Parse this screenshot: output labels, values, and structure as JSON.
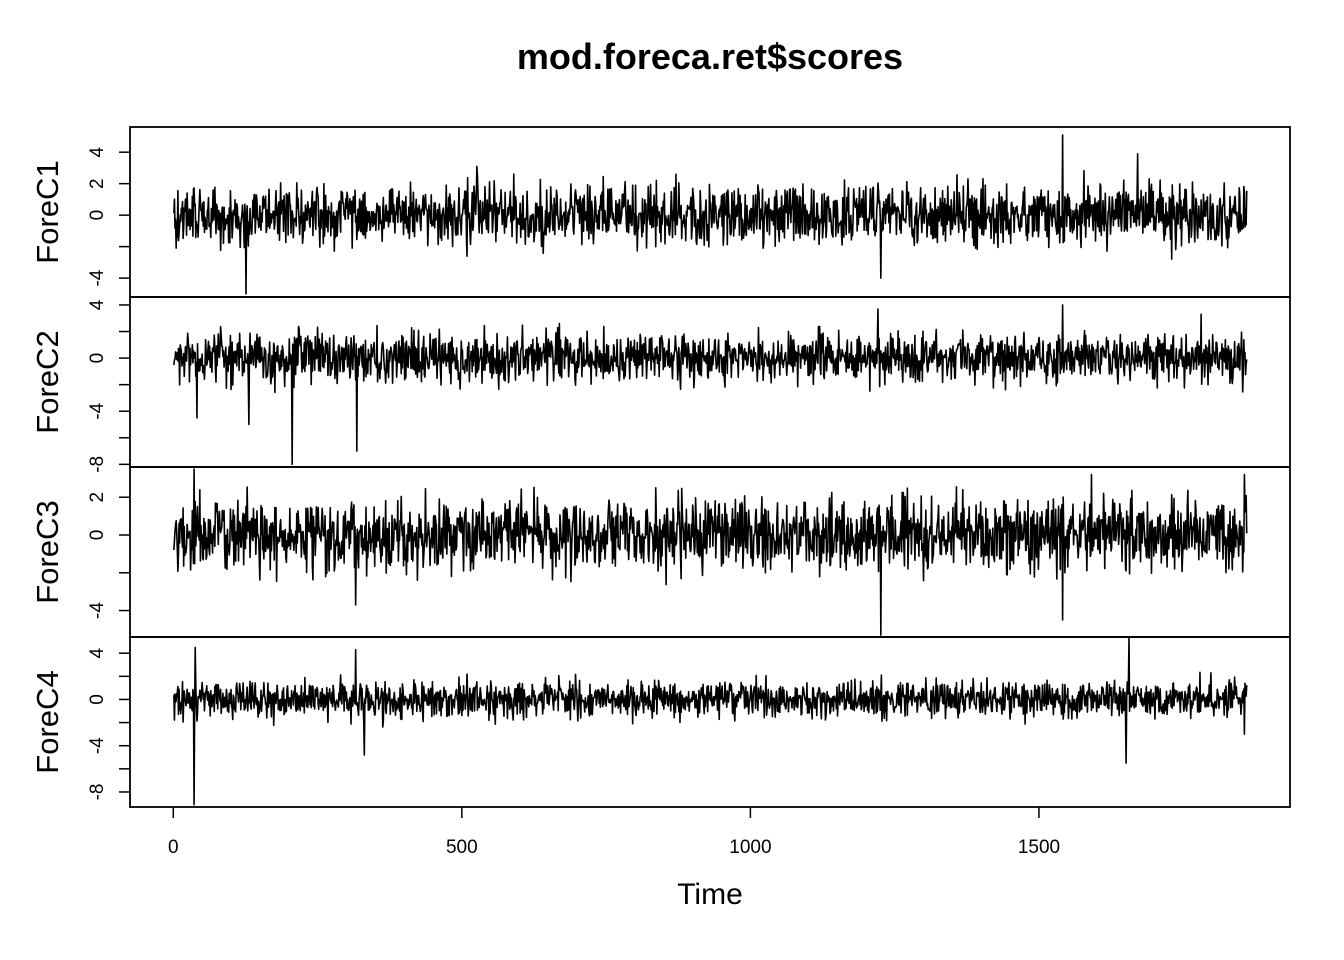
{
  "chart_data": {
    "type": "line",
    "title": "mod.foreca.ret$scores",
    "xlabel": "Time",
    "xlim": [
      0,
      1860
    ],
    "x_ticks": [
      0,
      500,
      1000,
      1500
    ],
    "n_points": 1860,
    "series": [
      {
        "name": "ForeC1",
        "ylim": [
          -5.2,
          5.6
        ],
        "y_ticks": [
          -4,
          -2,
          0,
          2,
          4
        ],
        "y_tick_labels": [
          "-4",
          "",
          "0",
          "2",
          "4"
        ],
        "scale": 0.95,
        "extremes": [
          [
            125,
            -5.0
          ],
          [
            1540,
            5.1
          ],
          [
            1225,
            -4.0
          ],
          [
            525,
            3.1
          ],
          [
            1670,
            3.9
          ],
          [
            870,
            2.6
          ]
        ]
      },
      {
        "name": "ForeC2",
        "ylim": [
          -8.2,
          4.6
        ],
        "y_ticks": [
          -8,
          -6,
          -4,
          -2,
          0,
          2,
          4
        ],
        "y_tick_labels": [
          "-8",
          "",
          "-4",
          "",
          "0",
          "",
          "4"
        ],
        "scale": 0.95,
        "extremes": [
          [
            205,
            -8.0
          ],
          [
            317,
            -7.0
          ],
          [
            130,
            -5.0
          ],
          [
            40,
            -4.5
          ],
          [
            1540,
            4.0
          ],
          [
            1220,
            3.7
          ],
          [
            1780,
            3.3
          ]
        ]
      },
      {
        "name": "ForeC3",
        "ylim": [
          -5.4,
          3.6
        ],
        "y_ticks": [
          -4,
          -2,
          0,
          2
        ],
        "y_tick_labels": [
          "-4",
          "",
          "0",
          "2"
        ],
        "scale": 0.95,
        "extremes": [
          [
            1225,
            -5.3
          ],
          [
            35,
            3.5
          ],
          [
            315,
            -3.7
          ],
          [
            1540,
            -4.5
          ],
          [
            1590,
            3.2
          ],
          [
            1855,
            3.2
          ]
        ]
      },
      {
        "name": "ForeC4",
        "ylim": [
          -9.3,
          5.4
        ],
        "y_ticks": [
          -8,
          -6,
          -4,
          -2,
          0,
          2,
          4
        ],
        "y_tick_labels": [
          "-8",
          "",
          "-4",
          "",
          "0",
          "",
          "4"
        ],
        "scale": 0.8,
        "extremes": [
          [
            35,
            -9.1
          ],
          [
            37,
            4.5
          ],
          [
            315,
            4.3
          ],
          [
            330,
            -4.8
          ],
          [
            1655,
            5.3
          ],
          [
            1650,
            -5.5
          ],
          [
            1855,
            -3.0
          ]
        ]
      }
    ]
  }
}
